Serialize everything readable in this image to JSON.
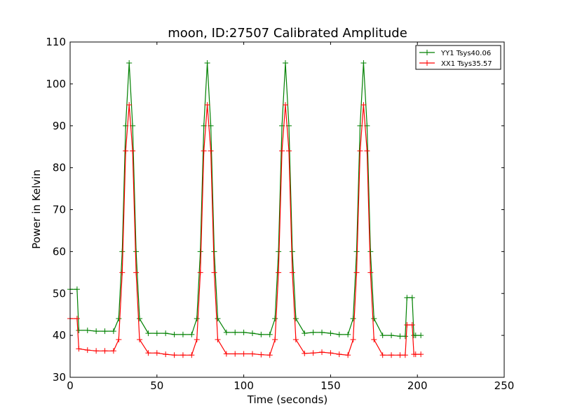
{
  "chart_data": {
    "type": "line",
    "title": "moon, ID:27507 Calibrated Amplitude",
    "xlabel": "Time (seconds)",
    "ylabel": "Power in Kelvin",
    "xlim": [
      0,
      250
    ],
    "ylim": [
      30,
      110
    ],
    "x_ticks": [
      "0",
      "50",
      "100",
      "150",
      "200",
      "250"
    ],
    "y_ticks": [
      "30",
      "40",
      "50",
      "60",
      "70",
      "80",
      "90",
      "100",
      "110"
    ],
    "grid": false,
    "legend_position": "top-right",
    "marker": "+",
    "series": [
      {
        "name": "YY1 Tsys40.06",
        "color": "#008000",
        "x": [
          0,
          4,
          5,
          10,
          15,
          20,
          25,
          28,
          30,
          32,
          34,
          36,
          38,
          40,
          45,
          50,
          55,
          60,
          65,
          70,
          73,
          75,
          77,
          79,
          81,
          83,
          85,
          90,
          95,
          100,
          105,
          110,
          115,
          118,
          120,
          122,
          124,
          126,
          128,
          130,
          135,
          140,
          145,
          150,
          155,
          160,
          163,
          165,
          167,
          169,
          171,
          173,
          175,
          180,
          185,
          190,
          193,
          194,
          197,
          198,
          199,
          202
        ],
        "y": [
          51,
          51,
          41.2,
          41.2,
          41,
          41,
          41,
          44,
          60,
          90,
          105,
          90,
          60,
          44,
          40.5,
          40.5,
          40.5,
          40.2,
          40.2,
          40.2,
          44,
          60,
          90,
          105,
          90,
          60,
          44,
          40.7,
          40.7,
          40.7,
          40.5,
          40.2,
          40.2,
          44,
          60,
          90,
          105,
          90,
          60,
          44,
          40.5,
          40.7,
          40.7,
          40.5,
          40.2,
          40.2,
          44,
          60,
          90,
          105,
          90,
          60,
          44,
          40,
          40,
          39.8,
          39.8,
          49,
          49,
          40,
          40,
          40
        ]
      },
      {
        "name": "XX1 Tsys35.57",
        "color": "#ff0000",
        "x": [
          0,
          4,
          5,
          10,
          15,
          20,
          25,
          28,
          30,
          32,
          34,
          36,
          38,
          40,
          45,
          50,
          55,
          60,
          65,
          70,
          73,
          75,
          77,
          79,
          81,
          83,
          85,
          90,
          95,
          100,
          105,
          110,
          115,
          118,
          120,
          122,
          124,
          126,
          128,
          130,
          135,
          140,
          145,
          150,
          155,
          160,
          163,
          165,
          167,
          169,
          171,
          173,
          175,
          180,
          185,
          190,
          193,
          194,
          197,
          198,
          199,
          202
        ],
        "y": [
          44,
          44,
          36.8,
          36.5,
          36.3,
          36.3,
          36.3,
          39,
          55,
          84,
          95,
          84,
          55,
          39,
          35.8,
          35.8,
          35.5,
          35.3,
          35.3,
          35.3,
          39,
          55,
          84,
          95,
          84,
          55,
          39,
          35.6,
          35.6,
          35.6,
          35.6,
          35.4,
          35.3,
          39,
          55,
          84,
          95,
          84,
          55,
          39,
          35.7,
          35.8,
          36,
          35.8,
          35.5,
          35.3,
          39,
          55,
          84,
          95,
          84,
          55,
          39,
          35.3,
          35.3,
          35.3,
          35.3,
          42.5,
          42.5,
          35.5,
          35.5,
          35.5
        ]
      }
    ]
  }
}
